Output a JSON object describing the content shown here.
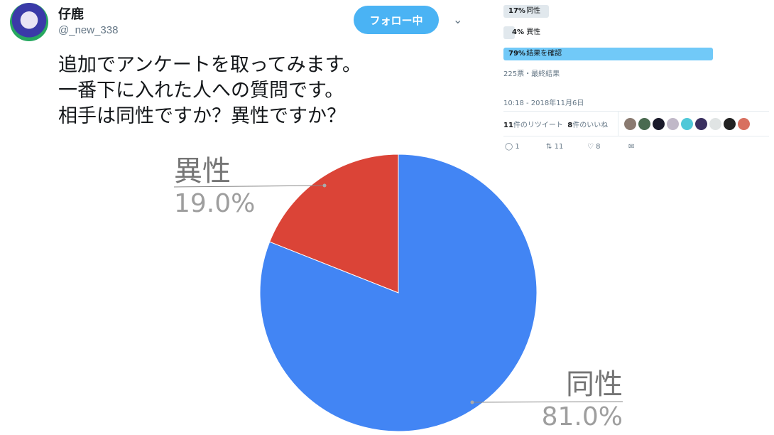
{
  "user": {
    "name": "仔鹿",
    "handle": "@_new_338"
  },
  "follow_label": "フォロー中",
  "tweet_lines": [
    "追加でアンケートを取ってみます。",
    "一番下に入れた人への質問です。",
    "相手は同性ですか？異性ですか？"
  ],
  "poll": {
    "options": [
      {
        "pct": "17%",
        "label": "同性",
        "value": 17
      },
      {
        "pct": "4%",
        "label": "異性",
        "value": 4
      },
      {
        "pct": "79%",
        "label": "結果を確認",
        "value": 79
      }
    ],
    "summary": "225票・最終結果"
  },
  "timestamp": "10:18 - 2018年11月6日",
  "stats": {
    "retweets_count": "11",
    "retweets_label": "件のリツイート",
    "likes_count": "8",
    "likes_label": "件のいいね"
  },
  "actions": {
    "replies": "1",
    "retweets": "11",
    "likes": "8"
  },
  "colors": {
    "accent": "#4ab3f4",
    "poll_win": "#71c9f8",
    "slice_same": "#4285f4",
    "slice_diff": "#db4437"
  },
  "chart_data": {
    "type": "pie",
    "slices": [
      {
        "label": "異性",
        "value": 19.0,
        "pct_label": "19.0%",
        "color": "#db4437"
      },
      {
        "label": "同性",
        "value": 81.0,
        "pct_label": "81.0%",
        "color": "#4285f4"
      }
    ]
  }
}
